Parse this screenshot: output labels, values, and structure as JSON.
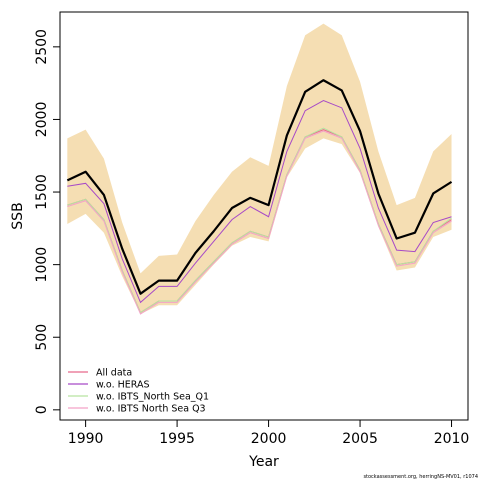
{
  "chart_data": {
    "type": "line",
    "xlabel": "Year",
    "ylabel": "SSB",
    "xlim": [
      1988.6,
      2010.9
    ],
    "ylim": [
      -70,
      2740
    ],
    "x_ticks": [
      1990,
      1995,
      2000,
      2005,
      2010
    ],
    "x_tick_labels": [
      "1990",
      "1995",
      "2000",
      "2005",
      "2010"
    ],
    "y_ticks": [
      0,
      500,
      1000,
      1500,
      2000,
      2500
    ],
    "y_tick_labels": [
      "0",
      "500",
      "1000",
      "1500",
      "2000",
      "2500"
    ],
    "x": [
      1989,
      1990,
      1991,
      1992,
      1993,
      1994,
      1995,
      1996,
      1997,
      1998,
      1999,
      2000,
      2001,
      2002,
      2003,
      2004,
      2005,
      2006,
      2007,
      2008,
      2009,
      2010
    ],
    "band": {
      "lower": [
        1280,
        1350,
        1220,
        920,
        660,
        720,
        720,
        860,
        1000,
        1130,
        1190,
        1160,
        1600,
        1800,
        1870,
        1830,
        1630,
        1260,
        960,
        980,
        1190,
        1240
      ],
      "upper": [
        1870,
        1930,
        1730,
        1290,
        940,
        1060,
        1070,
        1300,
        1480,
        1640,
        1740,
        1680,
        2230,
        2580,
        2660,
        2580,
        2260,
        1780,
        1410,
        1460,
        1780,
        1900
      ],
      "color": "#f5deb3"
    },
    "series": [
      {
        "name": "All data",
        "color": "#e8698c",
        "values": [
          1410,
          1450,
          1310,
          960,
          670,
          750,
          750,
          890,
          1020,
          1150,
          1230,
          1190,
          1620,
          1880,
          1930,
          1880,
          1650,
          1280,
          1000,
          1020,
          1230,
          1310
        ]
      },
      {
        "name": "w.o. HERAS",
        "color": "#a74ac7",
        "values": [
          1540,
          1560,
          1420,
          1040,
          740,
          850,
          850,
          1010,
          1160,
          1310,
          1400,
          1330,
          1780,
          2060,
          2130,
          2080,
          1800,
          1390,
          1100,
          1090,
          1290,
          1330
        ]
      },
      {
        "name": "w.o. IBTS_North Sea_Q1",
        "color": "#b6e3a0",
        "values": [
          1410,
          1450,
          1310,
          960,
          670,
          750,
          750,
          890,
          1020,
          1150,
          1230,
          1190,
          1620,
          1880,
          1940,
          1880,
          1650,
          1280,
          1000,
          1020,
          1230,
          1320
        ]
      },
      {
        "name": "w.o. IBTS North Sea Q3",
        "color": "#f4a2c8",
        "values": [
          1400,
          1440,
          1300,
          950,
          660,
          740,
          740,
          880,
          1010,
          1140,
          1220,
          1180,
          1610,
          1870,
          1920,
          1870,
          1640,
          1270,
          990,
          1010,
          1220,
          1300
        ]
      }
    ],
    "main_line": {
      "color": "#000000",
      "values": [
        1580,
        1640,
        1480,
        1110,
        800,
        890,
        890,
        1080,
        1230,
        1390,
        1460,
        1410,
        1890,
        2190,
        2270,
        2200,
        1920,
        1490,
        1180,
        1220,
        1490,
        1570
      ]
    },
    "legend": {
      "position": "bottom-left",
      "entries": [
        "All data",
        "w.o. HERAS",
        "w.o. IBTS_North Sea_Q1",
        "w.o. IBTS North Sea Q3"
      ]
    },
    "grid": false
  },
  "footnote": "stockassessment.org, herringNS-MV01, r1074"
}
